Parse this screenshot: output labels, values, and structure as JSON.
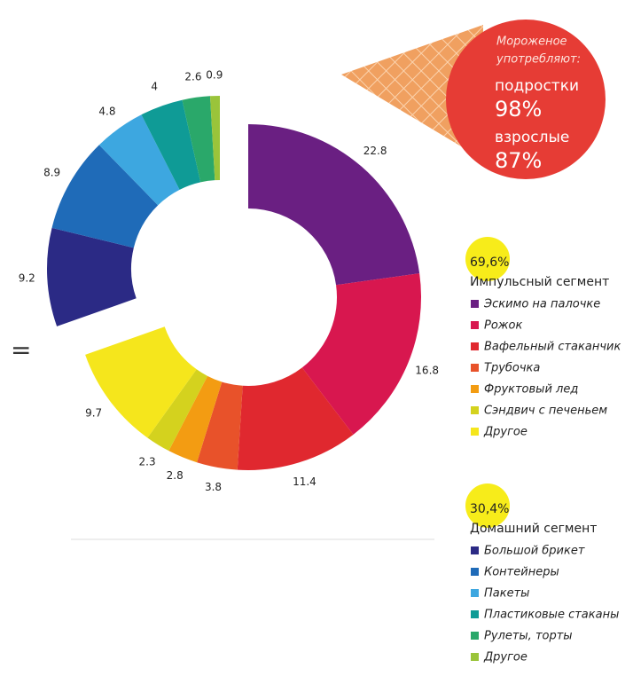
{
  "callout": {
    "title": [
      "Мороженое",
      "употребляют:"
    ],
    "items": [
      {
        "label": "подростки",
        "value": "98%"
      },
      {
        "label": "взрослые",
        "value": "87%"
      }
    ]
  },
  "side_mark": "=",
  "chart_data": {
    "type": "donut",
    "groups": [
      {
        "name": "Импульсный сегмент",
        "total": {
          "value": 69.6,
          "label": "69,6%"
        },
        "categories": [
          "Эскимо на палочке",
          "Рожок",
          "Вафельный стаканчик",
          "Трубочка",
          "Фруктовый лед",
          "Сэндвич с печеньем",
          "Другое"
        ],
        "colors": [
          "#6a1f82",
          "#d8174f",
          "#e0282f",
          "#e8522a",
          "#f39c12",
          "#d4d21e",
          "#f5e61c"
        ],
        "values": [
          22.8,
          16.8,
          11.4,
          3.8,
          2.8,
          2.3,
          9.7
        ]
      },
      {
        "name": "Домашний сегмент",
        "total": {
          "value": 30.4,
          "label": "30,4%"
        },
        "categories": [
          "Большой брикет",
          "Контейнеры",
          "Пакеты",
          "Пластиковые стаканы",
          "Рулеты, торты",
          "Другое"
        ],
        "colors": [
          "#2b2a85",
          "#1f6bb8",
          "#3da7e0",
          "#0f9b96",
          "#2aa86a",
          "#9ac43a"
        ],
        "values": [
          9.2,
          8.9,
          4.8,
          4,
          2.6,
          0.9
        ]
      }
    ]
  }
}
